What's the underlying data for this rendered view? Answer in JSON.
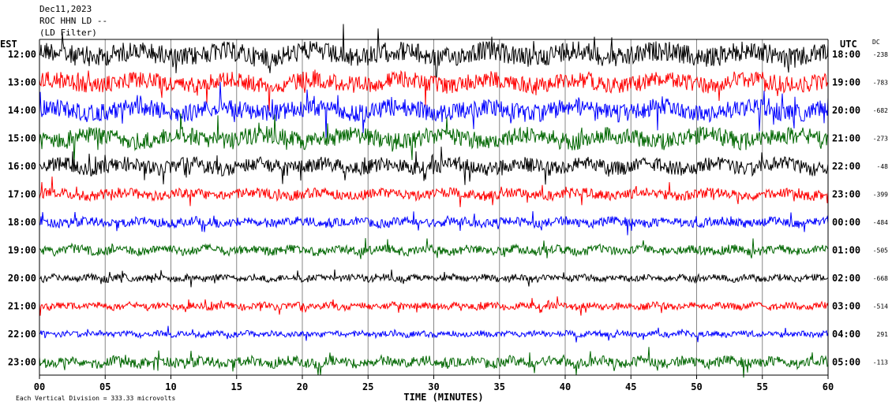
{
  "header": {
    "date": "Dec11,2023",
    "station": "ROC HHN LD --",
    "filter": "(LD Filter)"
  },
  "left_axis_label": "EST",
  "right_axis_label": "UTC",
  "dc_label": "DC",
  "xlabel": "TIME (MINUTES)",
  "footer_note": "Each Vertical Division = 333.33 microvolts",
  "colors": {
    "black": "#000000",
    "red": "#ff0000",
    "blue": "#0000ff",
    "green": "#006600"
  },
  "chart_data": {
    "type": "line",
    "title": "",
    "xlabel": "TIME (MINUTES)",
    "xlim": [
      0,
      60
    ],
    "x_ticks": [
      "00",
      "05",
      "10",
      "15",
      "20",
      "25",
      "30",
      "35",
      "40",
      "45",
      "50",
      "55",
      "60"
    ],
    "x_tick_values": [
      0,
      5,
      10,
      15,
      20,
      25,
      30,
      35,
      40,
      45,
      50,
      55,
      60
    ],
    "grid": "vertical lines every 5 minutes",
    "series": [
      {
        "est": "12:00",
        "utc": "18:00",
        "dc": "-238",
        "color": "black",
        "amp": 18,
        "wave": 3
      },
      {
        "est": "13:00",
        "utc": "19:00",
        "dc": "-783",
        "color": "red",
        "amp": 15,
        "wave": 3
      },
      {
        "est": "14:00",
        "utc": "20:00",
        "dc": "-682",
        "color": "blue",
        "amp": 16,
        "wave": 3
      },
      {
        "est": "15:00",
        "utc": "21:00",
        "dc": "-273",
        "color": "green",
        "amp": 16,
        "wave": 3
      },
      {
        "est": "16:00",
        "utc": "22:00",
        "dc": "-48",
        "color": "black",
        "amp": 13,
        "wave": 4
      },
      {
        "est": "17:00",
        "utc": "23:00",
        "dc": "-399",
        "color": "red",
        "amp": 9,
        "wave": 4
      },
      {
        "est": "18:00",
        "utc": "00:00",
        "dc": "-484",
        "color": "blue",
        "amp": 8,
        "wave": 5
      },
      {
        "est": "19:00",
        "utc": "01:00",
        "dc": "-505",
        "color": "green",
        "amp": 8,
        "wave": 6
      },
      {
        "est": "20:00",
        "utc": "02:00",
        "dc": "-668",
        "color": "black",
        "amp": 6,
        "wave": 8
      },
      {
        "est": "21:00",
        "utc": "03:00",
        "dc": "-514",
        "color": "red",
        "amp": 6,
        "wave": 8
      },
      {
        "est": "22:00",
        "utc": "04:00",
        "dc": "291",
        "color": "blue",
        "amp": 5,
        "wave": 9
      },
      {
        "est": "23:00",
        "utc": "05:00",
        "dc": "-113",
        "color": "green",
        "amp": 9,
        "wave": 6
      }
    ]
  }
}
